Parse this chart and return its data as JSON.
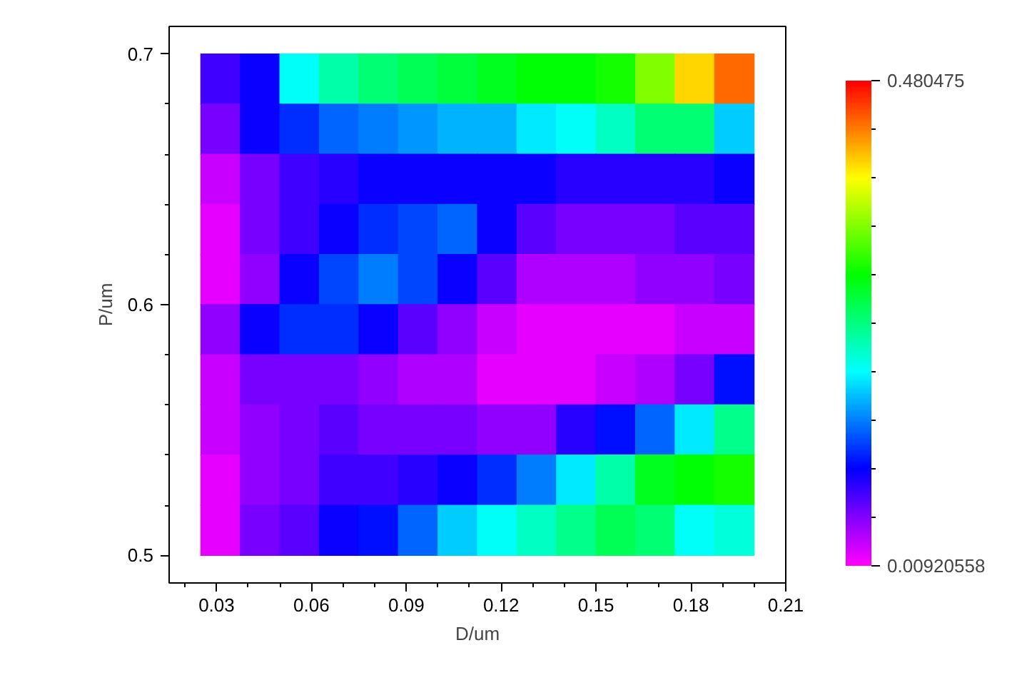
{
  "chart_data": {
    "type": "heatmap",
    "xlabel": "D/um",
    "ylabel": "P/um",
    "x": [
      0.03125,
      0.04375,
      0.05625,
      0.06875,
      0.08125,
      0.09375,
      0.10625,
      0.11875,
      0.13125,
      0.14375,
      0.15625,
      0.16875,
      0.18125,
      0.19375
    ],
    "y": [
      0.69,
      0.67,
      0.65,
      0.63,
      0.61,
      0.59,
      0.57,
      0.55,
      0.53,
      0.51
    ],
    "cells": [
      [
        0.08,
        0.1,
        0.2,
        0.23,
        0.25,
        0.26,
        0.27,
        0.28,
        0.29,
        0.29,
        0.3,
        0.34,
        0.4,
        0.44
      ],
      [
        0.06,
        0.1,
        0.12,
        0.14,
        0.15,
        0.16,
        0.17,
        0.17,
        0.19,
        0.2,
        0.22,
        0.25,
        0.25,
        0.18
      ],
      [
        0.03,
        0.06,
        0.08,
        0.09,
        0.1,
        0.1,
        0.1,
        0.1,
        0.1,
        0.09,
        0.09,
        0.09,
        0.09,
        0.1
      ],
      [
        0.02,
        0.06,
        0.08,
        0.1,
        0.12,
        0.13,
        0.14,
        0.1,
        0.07,
        0.06,
        0.06,
        0.06,
        0.07,
        0.07
      ],
      [
        0.02,
        0.05,
        0.1,
        0.13,
        0.15,
        0.13,
        0.1,
        0.07,
        0.04,
        0.04,
        0.04,
        0.05,
        0.05,
        0.06
      ],
      [
        0.05,
        0.1,
        0.12,
        0.12,
        0.1,
        0.07,
        0.05,
        0.03,
        0.02,
        0.02,
        0.02,
        0.02,
        0.03,
        0.03
      ],
      [
        0.03,
        0.06,
        0.06,
        0.06,
        0.05,
        0.04,
        0.04,
        0.02,
        0.02,
        0.02,
        0.03,
        0.04,
        0.06,
        0.11
      ],
      [
        0.03,
        0.05,
        0.06,
        0.07,
        0.06,
        0.06,
        0.06,
        0.05,
        0.05,
        0.09,
        0.11,
        0.14,
        0.19,
        0.24
      ],
      [
        0.02,
        0.05,
        0.06,
        0.08,
        0.08,
        0.09,
        0.1,
        0.12,
        0.15,
        0.19,
        0.23,
        0.28,
        0.29,
        0.3
      ],
      [
        0.02,
        0.06,
        0.07,
        0.1,
        0.11,
        0.14,
        0.18,
        0.2,
        0.22,
        0.24,
        0.26,
        0.25,
        0.2,
        0.21
      ]
    ],
    "xlim": [
      0.015,
      0.21
    ],
    "ylim": [
      0.489,
      0.711
    ],
    "xticks": [
      0.03,
      0.06,
      0.09,
      0.12,
      0.15,
      0.18,
      0.21
    ],
    "yticks": [
      0.5,
      0.6,
      0.7
    ],
    "clim": [
      0.00920558,
      0.480475
    ],
    "cticks": [
      0.00920558,
      0.480475
    ]
  }
}
